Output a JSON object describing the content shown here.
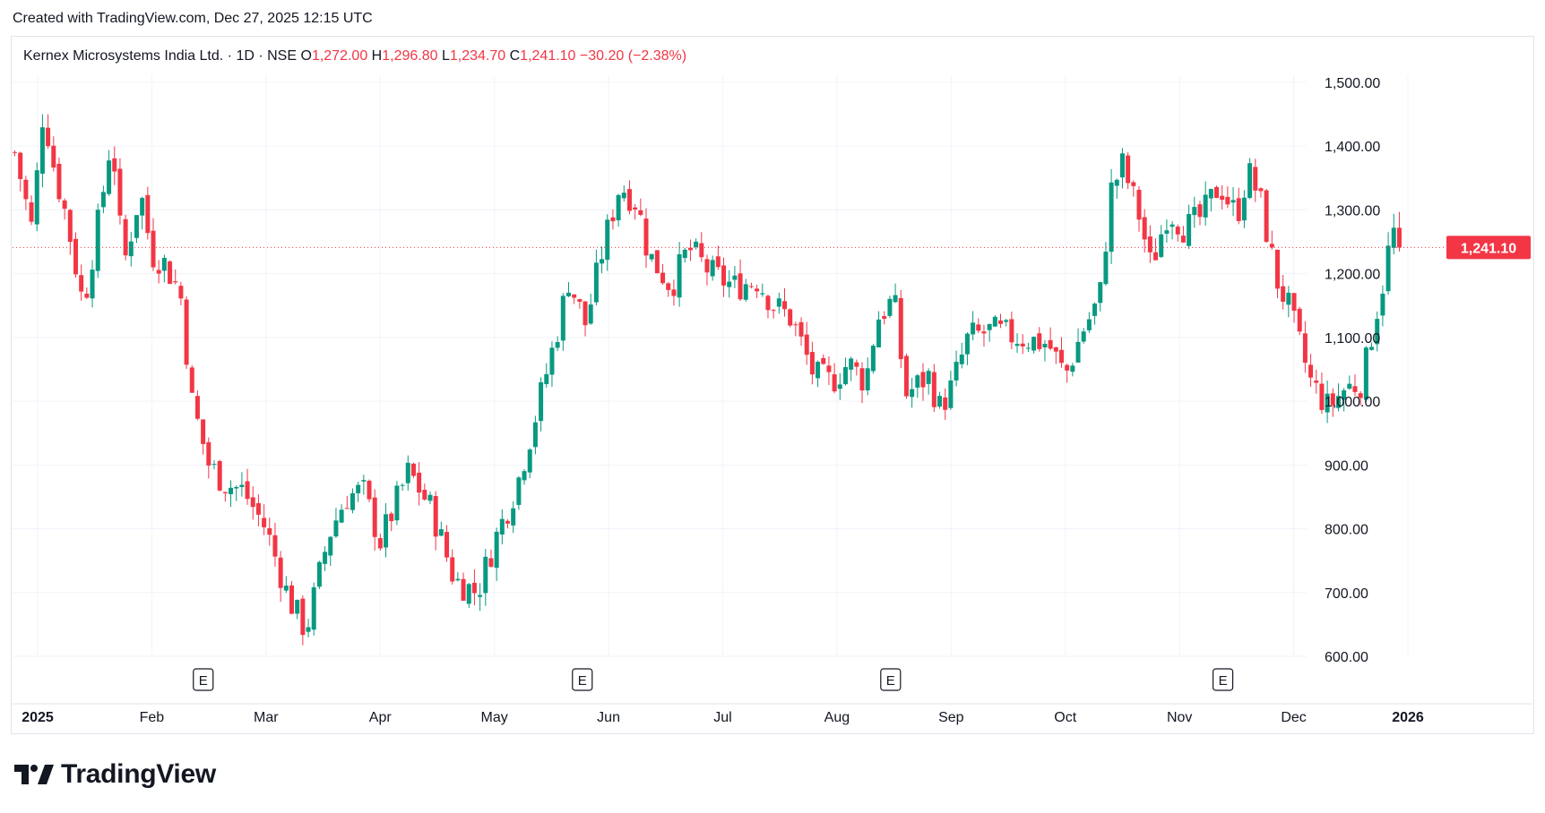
{
  "header": {
    "created_with": "Created with TradingView.com, Dec 27, 2025 12:15 UTC"
  },
  "legend": {
    "symbol": "Kernex Microsystems India Ltd.",
    "interval": "1D",
    "exchange": "NSE",
    "o_label": "O",
    "o_value": "1,272.00",
    "h_label": "H",
    "h_value": "1,296.80",
    "l_label": "L",
    "l_value": "1,234.70",
    "c_label": "C",
    "c_value": "1,241.10",
    "change": "−30.20 (−2.38%)"
  },
  "brand": {
    "name": "TradingView"
  },
  "colors": {
    "up": "#089981",
    "down": "#f23645",
    "grid": "#f0f3fa",
    "axis_text": "#131722"
  },
  "chart_data": {
    "type": "candlestick",
    "ylim": [
      550,
      1560
    ],
    "y_ticks": [
      600,
      700,
      800,
      900,
      1000,
      1100,
      1200,
      1300,
      1400,
      1500
    ],
    "y_tick_labels": [
      "600.00",
      "700.00",
      "800.00",
      "900.00",
      "1,000.00",
      "1,100.00",
      "1,200.00",
      "1,300.00",
      "1,400.00",
      "1,500.00"
    ],
    "x_labels": [
      {
        "label": "2025",
        "month": 1,
        "bold": true
      },
      {
        "label": "Feb",
        "month": 2
      },
      {
        "label": "Mar",
        "month": 3
      },
      {
        "label": "Apr",
        "month": 4
      },
      {
        "label": "May",
        "month": 5
      },
      {
        "label": "Jun",
        "month": 6
      },
      {
        "label": "Jul",
        "month": 7
      },
      {
        "label": "Aug",
        "month": 8
      },
      {
        "label": "Sep",
        "month": 9
      },
      {
        "label": "Oct",
        "month": 10
      },
      {
        "label": "Nov",
        "month": 11
      },
      {
        "label": "Dec",
        "month": 12
      },
      {
        "label": "2026",
        "month": 13,
        "bold": true
      }
    ],
    "earnings_markers": [
      {
        "label": "E",
        "month": 2.45
      },
      {
        "label": "E",
        "month": 5.77
      },
      {
        "label": "E",
        "month": 8.47
      },
      {
        "label": "E",
        "month": 11.38
      }
    ],
    "last_price": 1241.1,
    "last_price_label": "1,241.10",
    "anchors": [
      {
        "m": 0.8,
        "p": 1390
      },
      {
        "m": 0.95,
        "p": 1270
      },
      {
        "m": 1.05,
        "p": 1460
      },
      {
        "m": 1.15,
        "p": 1360
      },
      {
        "m": 1.25,
        "p": 1290
      },
      {
        "m": 1.4,
        "p": 1150
      },
      {
        "m": 1.55,
        "p": 1300
      },
      {
        "m": 1.65,
        "p": 1420
      },
      {
        "m": 1.75,
        "p": 1210
      },
      {
        "m": 1.9,
        "p": 1330
      },
      {
        "m": 2.0,
        "p": 1230
      },
      {
        "m": 2.1,
        "p": 1220
      },
      {
        "m": 2.25,
        "p": 1170
      },
      {
        "m": 2.35,
        "p": 1000
      },
      {
        "m": 2.5,
        "p": 900
      },
      {
        "m": 2.65,
        "p": 870
      },
      {
        "m": 2.8,
        "p": 860
      },
      {
        "m": 3.0,
        "p": 800
      },
      {
        "m": 3.2,
        "p": 690
      },
      {
        "m": 3.35,
        "p": 640
      },
      {
        "m": 3.55,
        "p": 790
      },
      {
        "m": 3.7,
        "p": 850
      },
      {
        "m": 3.85,
        "p": 860
      },
      {
        "m": 4.0,
        "p": 780
      },
      {
        "m": 4.25,
        "p": 890
      },
      {
        "m": 4.45,
        "p": 830
      },
      {
        "m": 4.65,
        "p": 720
      },
      {
        "m": 4.85,
        "p": 700
      },
      {
        "m": 5.0,
        "p": 780
      },
      {
        "m": 5.2,
        "p": 870
      },
      {
        "m": 5.35,
        "p": 970
      },
      {
        "m": 5.55,
        "p": 1110
      },
      {
        "m": 5.65,
        "p": 1190
      },
      {
        "m": 5.8,
        "p": 1120
      },
      {
        "m": 5.95,
        "p": 1240
      },
      {
        "m": 6.1,
        "p": 1340
      },
      {
        "m": 6.25,
        "p": 1310
      },
      {
        "m": 6.35,
        "p": 1230
      },
      {
        "m": 6.55,
        "p": 1180
      },
      {
        "m": 6.7,
        "p": 1240
      },
      {
        "m": 6.9,
        "p": 1200
      },
      {
        "m": 7.1,
        "p": 1180
      },
      {
        "m": 7.3,
        "p": 1190
      },
      {
        "m": 7.45,
        "p": 1150
      },
      {
        "m": 7.6,
        "p": 1130
      },
      {
        "m": 7.8,
        "p": 1040
      },
      {
        "m": 7.95,
        "p": 1030
      },
      {
        "m": 8.1,
        "p": 1060
      },
      {
        "m": 8.25,
        "p": 1030
      },
      {
        "m": 8.35,
        "p": 1130
      },
      {
        "m": 8.5,
        "p": 1160
      },
      {
        "m": 8.6,
        "p": 1010
      },
      {
        "m": 8.8,
        "p": 1040
      },
      {
        "m": 8.9,
        "p": 990
      },
      {
        "m": 9.0,
        "p": 1020
      },
      {
        "m": 9.15,
        "p": 1100
      },
      {
        "m": 9.35,
        "p": 1110
      },
      {
        "m": 9.6,
        "p": 1100
      },
      {
        "m": 9.85,
        "p": 1090
      },
      {
        "m": 10.0,
        "p": 1040
      },
      {
        "m": 10.15,
        "p": 1110
      },
      {
        "m": 10.3,
        "p": 1160
      },
      {
        "m": 10.4,
        "p": 1330
      },
      {
        "m": 10.5,
        "p": 1370
      },
      {
        "m": 10.65,
        "p": 1290
      },
      {
        "m": 10.75,
        "p": 1210
      },
      {
        "m": 10.9,
        "p": 1300
      },
      {
        "m": 11.05,
        "p": 1270
      },
      {
        "m": 11.2,
        "p": 1290
      },
      {
        "m": 11.35,
        "p": 1340
      },
      {
        "m": 11.5,
        "p": 1290
      },
      {
        "m": 11.6,
        "p": 1360
      },
      {
        "m": 11.7,
        "p": 1320
      },
      {
        "m": 11.85,
        "p": 1190
      },
      {
        "m": 11.95,
        "p": 1150
      },
      {
        "m": 12.05,
        "p": 1090
      },
      {
        "m": 12.15,
        "p": 1030
      },
      {
        "m": 12.3,
        "p": 990
      },
      {
        "m": 12.45,
        "p": 1020
      },
      {
        "m": 12.6,
        "p": 1030
      },
      {
        "m": 12.7,
        "p": 1120
      },
      {
        "m": 12.8,
        "p": 1200
      },
      {
        "m": 12.85,
        "p": 1260
      },
      {
        "m": 12.92,
        "p": 1272
      },
      {
        "m": 12.96,
        "p": 1241.1
      }
    ]
  }
}
